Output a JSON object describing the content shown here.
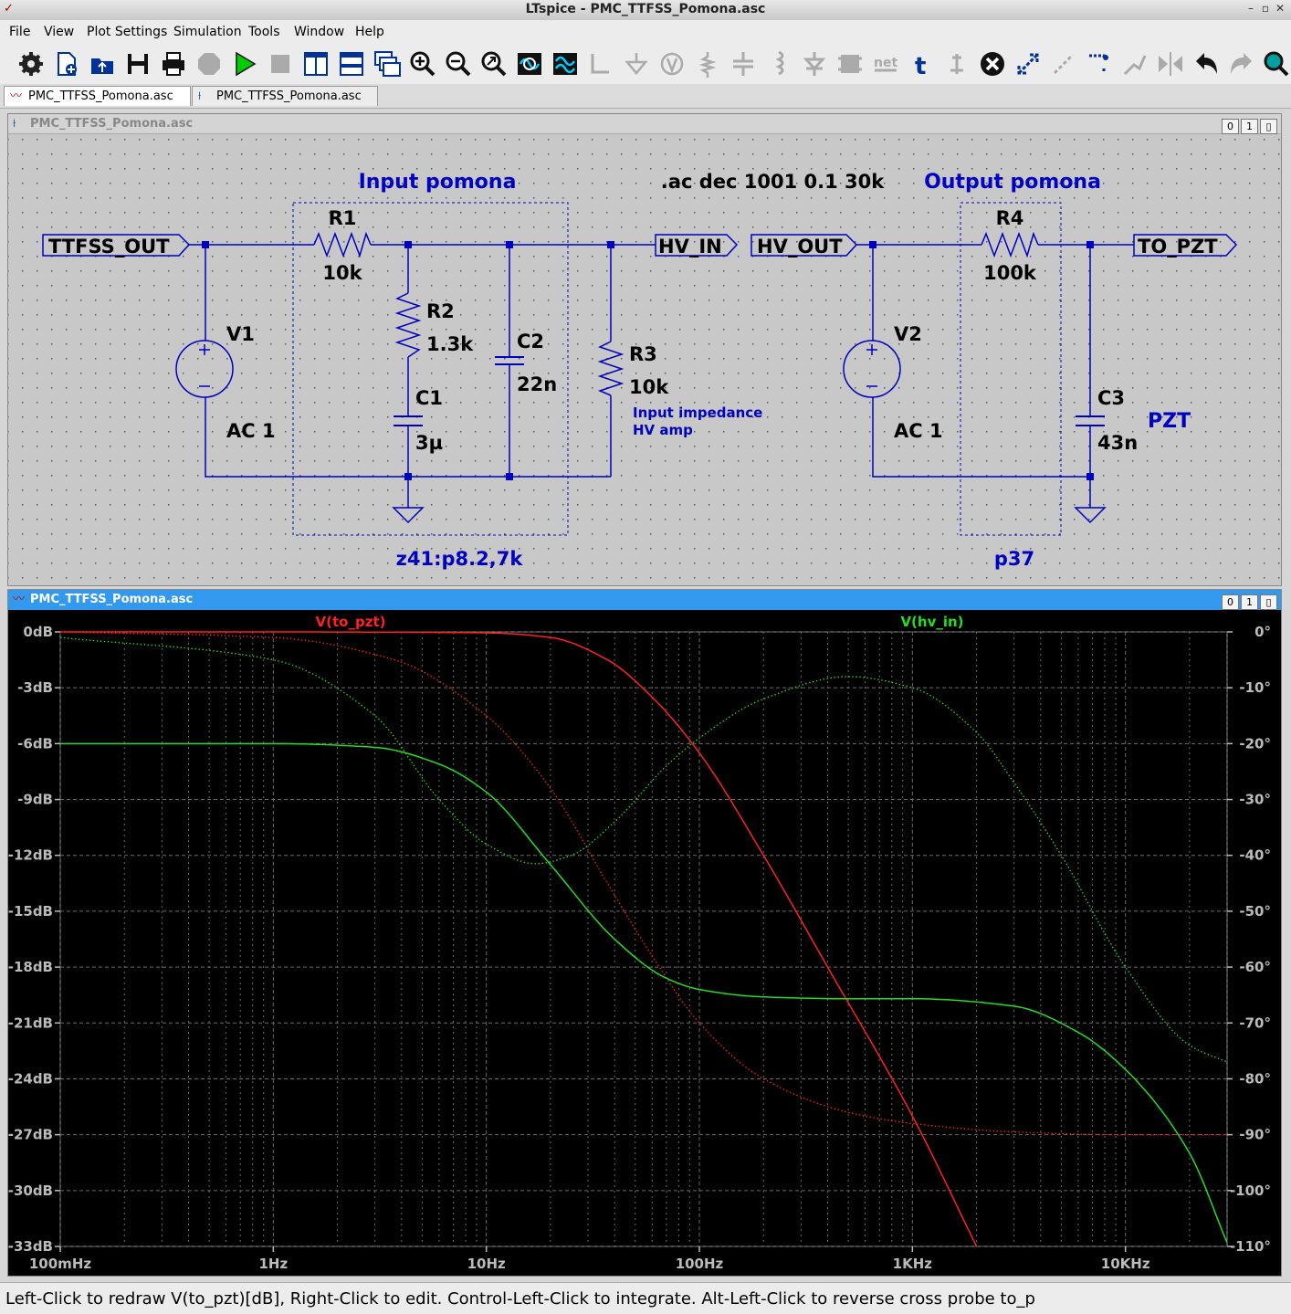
{
  "window": {
    "title": "LTspice - PMC_TTFSS_Pomona.asc",
    "app_icon": "ltspice-icon"
  },
  "menu": {
    "items": [
      "File",
      "View",
      "Plot Settings",
      "Simulation",
      "Tools",
      "Window",
      "Help"
    ]
  },
  "toolbar": {
    "icons": [
      "gear-icon",
      "new-schematic-icon",
      "open-icon",
      "save-icon",
      "print-icon",
      "halt-icon",
      "run-icon",
      "stop-icon",
      "tile-vertical-icon",
      "tile-horizontal-icon",
      "cascade-icon",
      "zoom-in-icon",
      "zoom-out-icon",
      "zoom-fit-icon",
      "autorange-icon",
      "waveform-icon",
      "wire-icon",
      "ground-icon",
      "label-net-icon",
      "resistor-icon",
      "capacitor-icon",
      "inductor-icon",
      "diode-icon",
      "component-icon",
      "net-icon",
      "text-icon",
      "spice-directive-icon",
      "delete-icon",
      "move-icon",
      "drag-icon",
      "copy-icon",
      "rotate-icon",
      "mirror-icon",
      "undo-icon",
      "redo-icon",
      "find-icon"
    ]
  },
  "tabs": [
    {
      "label": "PMC_TTFSS_Pomona.asc",
      "icon": "waveform-tab-icon"
    },
    {
      "label": "PMC_TTFSS_Pomona.asc",
      "icon": "schematic-tab-icon"
    }
  ],
  "schematic": {
    "pane_title": "PMC_TTFSS_Pomona.asc",
    "pane_buttons": [
      "0",
      "1",
      "▯"
    ],
    "input_box_title": "Input pomona",
    "output_box_title": "Output pomona",
    "directive": ".ac dec 1001 0.1 30k",
    "input_box_note": "z41:p8.2,7k",
    "output_box_note": "p37",
    "labels": {
      "ttfss_out": "TTFSS_OUT",
      "hv_in": "HV_IN",
      "hv_out": "HV_OUT",
      "to_pzt": "TO_PZT"
    },
    "components": {
      "r1": {
        "name": "R1",
        "value": "10k"
      },
      "r2": {
        "name": "R2",
        "value": "1.3k"
      },
      "r3": {
        "name": "R3",
        "value": "10k"
      },
      "r4": {
        "name": "R4",
        "value": "100k"
      },
      "c1": {
        "name": "C1",
        "value": "3µ"
      },
      "c2": {
        "name": "C2",
        "value": "22n"
      },
      "c3": {
        "name": "C3",
        "value": "43n"
      },
      "v1": {
        "name": "V1",
        "value": "AC 1"
      },
      "v2": {
        "name": "V2",
        "value": "AC 1"
      }
    },
    "comment_line1": "Input impedance",
    "comment_line2": "HV amp",
    "pzt_label": "PZT"
  },
  "plot": {
    "pane_title": "PMC_TTFSS_Pomona.asc",
    "pane_buttons": [
      "0",
      "1",
      "▯"
    ],
    "colors": {
      "to_pzt": "#ff2020",
      "hv_in": "#22dd22",
      "background": "#000000",
      "grid": "#6a6a6a"
    },
    "chart_data": {
      "type": "line",
      "x_scale": "log",
      "xlim": [
        0.1,
        30000
      ],
      "x_ticks": [
        "100mHz",
        "1Hz",
        "10Hz",
        "100Hz",
        "1KHz",
        "10KHz"
      ],
      "ylim_left": [
        -33,
        0
      ],
      "y_ticks_left": [
        "0dB",
        "-3dB",
        "-6dB",
        "-9dB",
        "-12dB",
        "-15dB",
        "-18dB",
        "-21dB",
        "-24dB",
        "-27dB",
        "-30dB",
        "-33dB"
      ],
      "ylim_right": [
        -110,
        0
      ],
      "y_ticks_right": [
        "0°",
        "-10°",
        "-20°",
        "-30°",
        "-40°",
        "-50°",
        "-60°",
        "-70°",
        "-80°",
        "-90°",
        "-100°",
        "-110°"
      ],
      "series": [
        {
          "name": "V(to_pzt)",
          "quantity": "magnitude",
          "axis": "dB",
          "style": "solid",
          "x": [
            0.1,
            1,
            10,
            20,
            37,
            60,
            100,
            200,
            400,
            1000,
            2000
          ],
          "y": [
            0,
            0,
            -0.05,
            -0.3,
            -1.5,
            -3.5,
            -6.5,
            -12,
            -18,
            -26,
            -33
          ]
        },
        {
          "name": "V(to_pzt)",
          "quantity": "phase",
          "axis": "deg",
          "style": "dotted",
          "x": [
            0.1,
            1,
            3.7,
            10,
            20,
            37,
            60,
            100,
            200,
            500,
            1000,
            3000,
            10000,
            30000
          ],
          "y": [
            0,
            -1,
            -5,
            -15,
            -28,
            -45,
            -58,
            -70,
            -80,
            -86,
            -88,
            -89.5,
            -90,
            -90
          ]
        },
        {
          "name": "V(hv_in)",
          "quantity": "magnitude",
          "axis": "dB",
          "style": "solid",
          "x": [
            0.1,
            1,
            3,
            6,
            10,
            20,
            40,
            70,
            100,
            200,
            500,
            1000,
            3000,
            6000,
            10000,
            20000,
            30000
          ],
          "y": [
            -6,
            -6,
            -6.2,
            -7.1,
            -8.6,
            -12.5,
            -16.5,
            -18.6,
            -19.2,
            -19.6,
            -19.7,
            -19.7,
            -20.1,
            -21.5,
            -23.5,
            -28,
            -32.8
          ]
        },
        {
          "name": "V(hv_in)",
          "quantity": "phase",
          "axis": "deg",
          "style": "dotted",
          "x": [
            0.1,
            1,
            3,
            6,
            10,
            17,
            25,
            40,
            70,
            100,
            200,
            500,
            1000,
            2000,
            3000,
            5000,
            10000,
            20000,
            30000
          ],
          "y": [
            -1,
            -5,
            -15,
            -30,
            -38,
            -41.5,
            -40,
            -34,
            -24,
            -19,
            -12,
            -8,
            -10,
            -18,
            -27,
            -40,
            -60,
            -74,
            -77
          ]
        }
      ]
    }
  },
  "status": {
    "text": "Left-Click to redraw V(to_pzt)[dB],  Right-Click to edit. Control-Left-Click to integrate. Alt-Left-Click to reverse cross probe to_p"
  }
}
